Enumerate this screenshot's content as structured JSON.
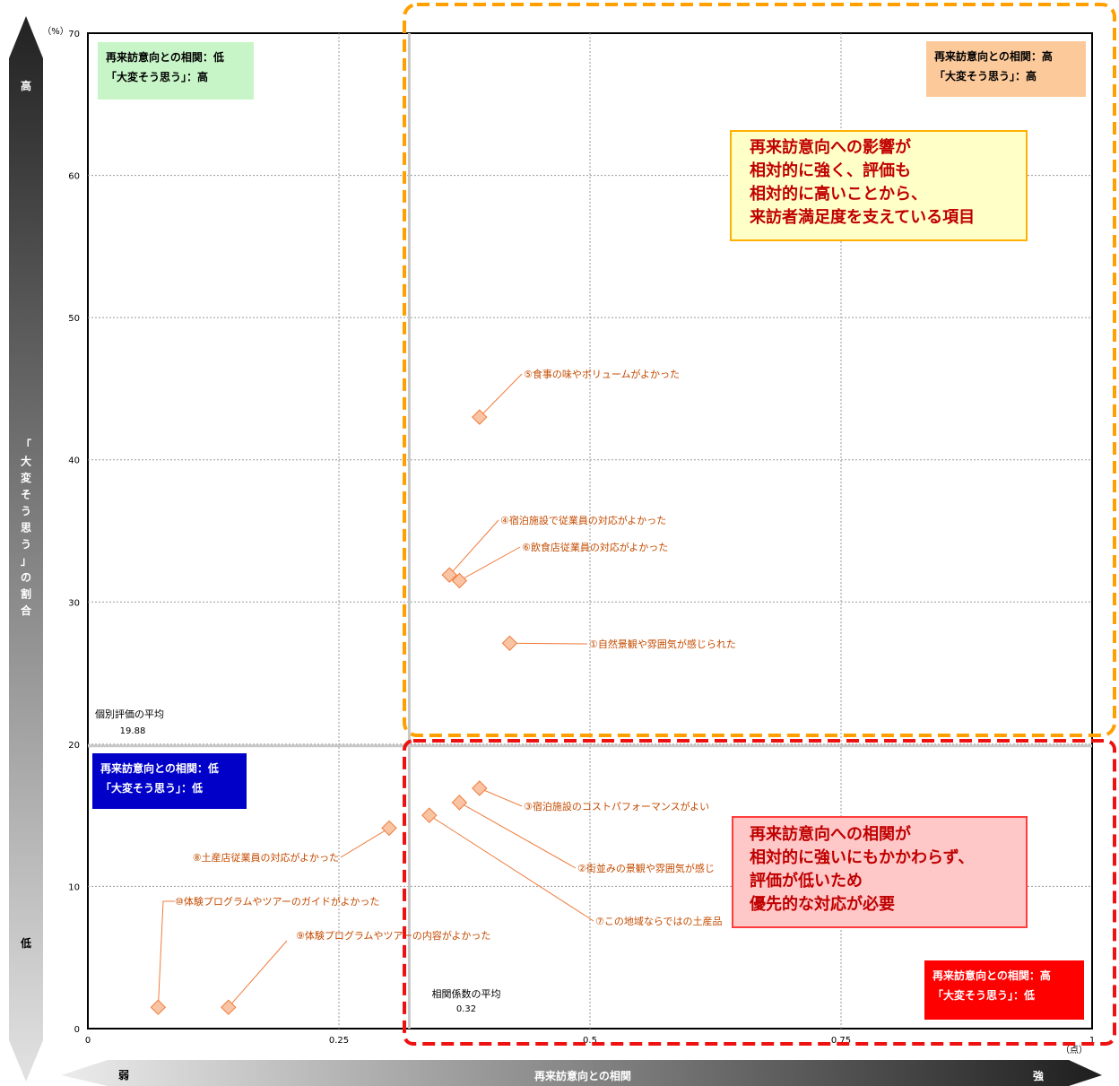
{
  "chart_data": {
    "type": "scatter",
    "xlabel": "再来訪意向との相関",
    "x_unit": "（点）",
    "y_unit": "（%）",
    "ylabel": "「大変そう思う」の割合",
    "y_arrow_high": "高",
    "y_arrow_low": "低",
    "x_arrow_weak": "弱",
    "x_arrow_strong": "強",
    "xlim": [
      0,
      1
    ],
    "ylim": [
      0,
      70
    ],
    "x_ticks": [
      "0",
      "0.25",
      "0.5",
      "0.75",
      "1"
    ],
    "y_ticks": [
      "0",
      "10",
      "20",
      "30",
      "40",
      "50",
      "60",
      "70"
    ],
    "grid": true,
    "avg_y": {
      "label": "個別評価の平均",
      "value": "19.88"
    },
    "avg_x": {
      "label": "相関係数の平均",
      "value": "0.32"
    },
    "points": [
      {
        "label": "①自然景観や雰囲気が感じられた",
        "x": 0.42,
        "y": 27.1
      },
      {
        "label": "②街並みの景観や雰囲気が感じ",
        "x": 0.37,
        "y": 15.9
      },
      {
        "label": "③宿泊施設のコストパフォーマンスがよい",
        "x": 0.39,
        "y": 16.9
      },
      {
        "label": "④宿泊施設で従業員の対応がよかった",
        "x": 0.36,
        "y": 31.9
      },
      {
        "label": "⑤食事の味やボリュームがよかった",
        "x": 0.39,
        "y": 43.0
      },
      {
        "label": "⑥飲食店従業員の対応がよかった",
        "x": 0.37,
        "y": 31.5
      },
      {
        "label": "⑦この地域ならではの土産品",
        "x": 0.34,
        "y": 15.0
      },
      {
        "label": "⑧土産店従業員の対応がよかった",
        "x": 0.3,
        "y": 14.1
      },
      {
        "label": "⑨体験プログラムやツアーの内容がよかった",
        "x": 0.14,
        "y": 1.5
      },
      {
        "label": "⑩体験プログラムやツアーのガイドがよかった",
        "x": 0.07,
        "y": 1.5
      }
    ]
  },
  "quadrants": {
    "top_left": {
      "line1": "再来訪意向との相関：低",
      "line2": "「大変そう思う」：高"
    },
    "top_right": {
      "line1": "再来訪意向との相関：高",
      "line2": "「大変そう思う」：高"
    },
    "bottom_left": {
      "line1": "再来訪意向との相関：低",
      "line2": "「大変そう思う」：低"
    },
    "bottom_right": {
      "line1": "再来訪意向との相関：高",
      "line2": "「大変そう思う」：低"
    }
  },
  "callouts": {
    "strength": [
      "再来訪意向への影響が",
      "相対的に強く、評価も",
      "相対的に高いことから、",
      "来訪者満足度を支えている項目"
    ],
    "priority": [
      "再来訪意向への相関が",
      "相対的に強いにもかかわらず、",
      "評価が低いため",
      "優先的な対応が必要"
    ]
  },
  "colors": {
    "marker_fill": "#f9c4a4",
    "marker_stroke": "#f07c3c",
    "label_text": "#c44b00",
    "quad_tl": "#c8f5c8",
    "quad_tr": "#fbc99a",
    "quad_bl": "#0000c8",
    "quad_br": "#ff0000",
    "dash_orange": "#ffa000",
    "dash_red": "#ee1111"
  }
}
